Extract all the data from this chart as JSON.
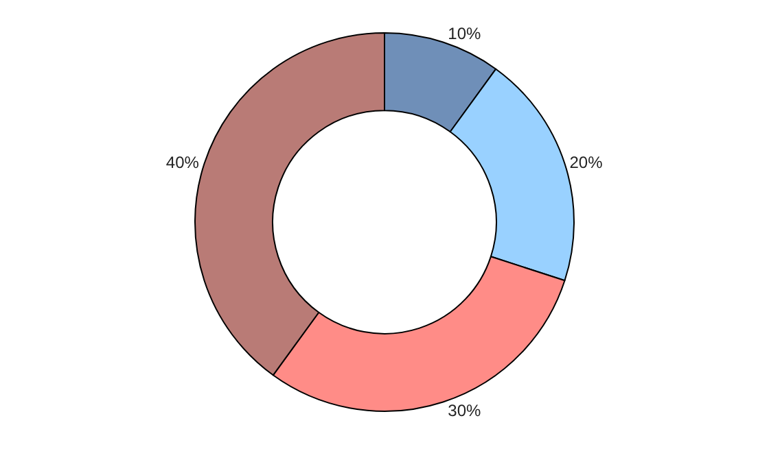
{
  "chart_data": {
    "type": "donut",
    "categories": [
      null,
      null,
      null,
      null
    ],
    "values": [
      10,
      20,
      30,
      40
    ],
    "value_labels": [
      "10%",
      "20%",
      "30%",
      "40%"
    ],
    "colors": [
      "#6f8fb8",
      "#99d1ff",
      "#ff8c87",
      "#b97b76"
    ],
    "legend": false
  }
}
